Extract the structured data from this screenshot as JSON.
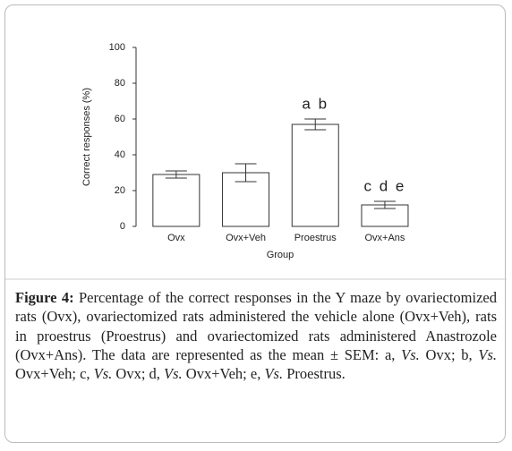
{
  "chart_data": {
    "type": "bar",
    "categories": [
      "Ovx",
      "Ovx+Veh",
      "Proestrus",
      "Ovx+Ans"
    ],
    "values": [
      29,
      30,
      57,
      12
    ],
    "errors": [
      2,
      5,
      3,
      2
    ],
    "color": "#ffffff",
    "ylim": [
      0,
      100
    ],
    "yticks": [
      0,
      20,
      40,
      60,
      80,
      100
    ],
    "ylabel": "Correct responses (%)",
    "xlabel": "Group",
    "annotations": [
      {
        "category": 2,
        "text": "a b"
      },
      {
        "category": 3,
        "text": "c d e"
      }
    ]
  },
  "caption": {
    "label": "Figure 4:",
    "runs": [
      {
        "text": " Percentage of the correct responses in the Y maze by ovariectomized rats (Ovx), ovariectomized rats administered the vehicle alone (Ovx+Veh), rats in proestrus (Proestrus) and ovariectomized rats administered Anastrozole (Ovx+Ans). The data are represented as the mean ± SEM: a, ",
        "italic": false
      },
      {
        "text": "Vs.",
        "italic": true
      },
      {
        "text": " Ovx; b, ",
        "italic": false
      },
      {
        "text": "Vs.",
        "italic": true
      },
      {
        "text": " Ovx+Veh; c, ",
        "italic": false
      },
      {
        "text": "Vs.",
        "italic": true
      },
      {
        "text": " Ovx; d, ",
        "italic": false
      },
      {
        "text": "Vs.",
        "italic": true
      },
      {
        "text": " Ovx+Veh; e, ",
        "italic": false
      },
      {
        "text": "Vs.",
        "italic": true
      },
      {
        "text": " Proestrus.",
        "italic": false
      }
    ]
  }
}
